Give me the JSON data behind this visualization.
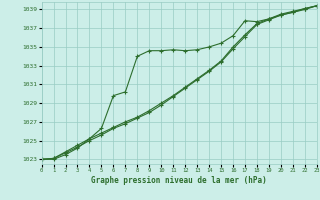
{
  "xlabel": "Graphe pression niveau de la mer (hPa)",
  "ylim": [
    1022.5,
    1039.8
  ],
  "xlim": [
    0,
    23
  ],
  "yticks": [
    1023,
    1025,
    1027,
    1029,
    1031,
    1033,
    1035,
    1037,
    1039
  ],
  "xticks": [
    0,
    1,
    2,
    3,
    4,
    5,
    6,
    7,
    8,
    9,
    10,
    11,
    12,
    13,
    14,
    15,
    16,
    17,
    18,
    19,
    20,
    21,
    22,
    23
  ],
  "bg_color": "#cceee8",
  "grid_color": "#99ccc4",
  "line_color": "#2d6e2d",
  "series1": [
    1023.0,
    1023.0,
    1023.5,
    1024.2,
    1025.2,
    1026.3,
    1029.8,
    1030.2,
    1034.0,
    1034.6,
    1034.6,
    1034.7,
    1034.6,
    1034.7,
    1035.0,
    1035.4,
    1036.2,
    1037.8,
    1037.7,
    1038.0,
    1038.5,
    1038.8,
    1039.1,
    1039.4
  ],
  "series2": [
    1023.0,
    1023.1,
    1023.8,
    1024.5,
    1025.2,
    1025.8,
    1026.4,
    1027.0,
    1027.5,
    1028.2,
    1029.0,
    1029.8,
    1030.7,
    1031.6,
    1032.5,
    1033.5,
    1035.0,
    1036.3,
    1037.5,
    1038.0,
    1038.4,
    1038.7,
    1039.0,
    1039.4
  ],
  "series3": [
    1023.0,
    1023.1,
    1023.7,
    1024.3,
    1025.0,
    1025.6,
    1026.3,
    1026.8,
    1027.4,
    1028.0,
    1028.8,
    1029.7,
    1030.6,
    1031.5,
    1032.4,
    1033.4,
    1034.8,
    1036.1,
    1037.4,
    1037.9,
    1038.4,
    1038.7,
    1039.1,
    1039.4
  ]
}
